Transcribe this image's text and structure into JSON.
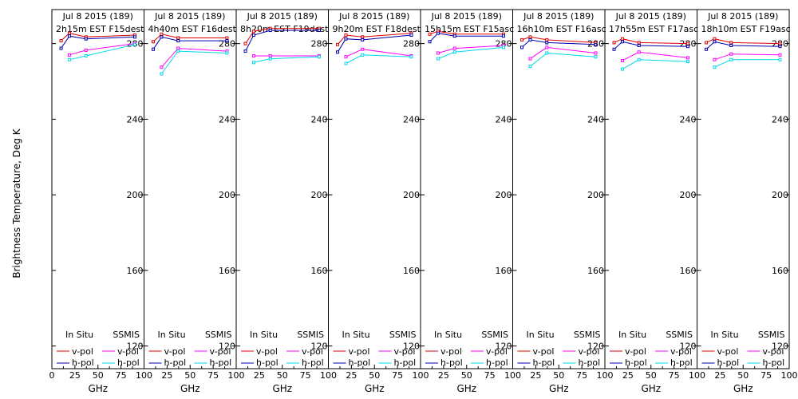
{
  "ylabel": "Brightness Temperature, Deg K",
  "xlabel": "GHz",
  "colors": {
    "insitu_v": "#e00000",
    "insitu_h": "#0000b0",
    "ssmis_v": "#ff00ff",
    "ssmis_h": "#00d8e8",
    "axis": "#000000"
  },
  "legend": {
    "insitu_title": "In Situ",
    "ssmis_title": "SSMIS",
    "v_pol": "v-pol",
    "h_pol": "h-pol"
  },
  "chart_data": [
    {
      "type": "line",
      "title": "Jul 8 2015 (189)",
      "subtitle": "2h15m  EST  F15dest",
      "xticks": [
        "0",
        "25",
        "50",
        "75",
        "100"
      ],
      "yticks": [
        "120",
        "160",
        "200",
        "240",
        "280"
      ],
      "xlim": [
        0,
        100
      ],
      "ylim": [
        108,
        298
      ],
      "series": [
        {
          "name": "In Situ v-pol",
          "x": [
            10,
            19,
            37,
            90
          ],
          "y": [
            281.5,
            285.5,
            283.5,
            284.5
          ]
        },
        {
          "name": "In Situ h-pol",
          "x": [
            10,
            19,
            37,
            90
          ],
          "y": [
            277.5,
            284,
            282.5,
            283.5
          ]
        },
        {
          "name": "SSMIS v-pol",
          "x": [
            19,
            37,
            90
          ],
          "y": [
            274,
            276.5,
            280
          ]
        },
        {
          "name": "SSMIS h-pol",
          "x": [
            19,
            37,
            90
          ],
          "y": [
            271.5,
            273.5,
            279.5
          ]
        }
      ]
    },
    {
      "type": "line",
      "title": "Jul 8 2015 (189)",
      "subtitle": "4h40m  EST  F16dest",
      "xticks": [
        "0",
        "25",
        "50",
        "75",
        "100"
      ],
      "yticks": [
        "120",
        "160",
        "200",
        "240",
        "280"
      ],
      "xlim": [
        0,
        100
      ],
      "ylim": [
        108,
        298
      ],
      "series": [
        {
          "name": "In Situ v-pol",
          "x": [
            10,
            19,
            37,
            90
          ],
          "y": [
            281,
            285,
            283,
            283
          ]
        },
        {
          "name": "In Situ h-pol",
          "x": [
            10,
            19,
            37,
            90
          ],
          "y": [
            277,
            283.5,
            281.5,
            281.5
          ]
        },
        {
          "name": "SSMIS v-pol",
          "x": [
            19,
            37,
            90
          ],
          "y": [
            267.5,
            277.5,
            276
          ]
        },
        {
          "name": "SSMIS h-pol",
          "x": [
            19,
            37,
            90
          ],
          "y": [
            264,
            276,
            275
          ]
        }
      ]
    },
    {
      "type": "line",
      "title": "Jul 8 2015 (189)",
      "subtitle": "8h20m  EST  F19dest",
      "xticks": [
        "0",
        "25",
        "50",
        "75",
        "100"
      ],
      "yticks": [
        "120",
        "160",
        "200",
        "240",
        "280"
      ],
      "xlim": [
        0,
        100
      ],
      "ylim": [
        108,
        298
      ],
      "series": [
        {
          "name": "In Situ v-pol",
          "x": [
            10,
            19,
            37,
            90
          ],
          "y": [
            280,
            286.5,
            288,
            288
          ]
        },
        {
          "name": "In Situ h-pol",
          "x": [
            10,
            19,
            37,
            90
          ],
          "y": [
            276,
            284.5,
            287,
            287
          ]
        },
        {
          "name": "SSMIS v-pol",
          "x": [
            19,
            37,
            90
          ],
          "y": [
            273.5,
            273.5,
            273.5
          ]
        },
        {
          "name": "SSMIS h-pol",
          "x": [
            19,
            37,
            90
          ],
          "y": [
            270,
            272,
            273
          ]
        }
      ]
    },
    {
      "type": "line",
      "title": "Jul 8 2015 (189)",
      "subtitle": "9h20m  EST  F18dest",
      "xticks": [
        "0",
        "25",
        "50",
        "75",
        "100"
      ],
      "yticks": [
        "120",
        "160",
        "200",
        "240",
        "280"
      ],
      "xlim": [
        0,
        100
      ],
      "ylim": [
        108,
        298
      ],
      "series": [
        {
          "name": "In Situ v-pol",
          "x": [
            10,
            19,
            37,
            90
          ],
          "y": [
            279.5,
            284.5,
            283.5,
            285.5
          ]
        },
        {
          "name": "In Situ h-pol",
          "x": [
            10,
            19,
            37,
            90
          ],
          "y": [
            275.5,
            282.5,
            282,
            284.5
          ]
        },
        {
          "name": "SSMIS v-pol",
          "x": [
            19,
            37,
            90
          ],
          "y": [
            273,
            277,
            273.5
          ]
        },
        {
          "name": "SSMIS h-pol",
          "x": [
            19,
            37,
            90
          ],
          "y": [
            269.5,
            274,
            273
          ]
        }
      ]
    },
    {
      "type": "line",
      "title": "Jul 8 2015 (189)",
      "subtitle": "15h15m  EST  F15asc",
      "xticks": [
        "0",
        "25",
        "50",
        "75",
        "100"
      ],
      "yticks": [
        "120",
        "160",
        "200",
        "240",
        "280"
      ],
      "xlim": [
        0,
        100
      ],
      "ylim": [
        108,
        298
      ],
      "series": [
        {
          "name": "In Situ v-pol",
          "x": [
            10,
            19,
            37,
            90
          ],
          "y": [
            285,
            286.5,
            285,
            285
          ]
        },
        {
          "name": "In Situ h-pol",
          "x": [
            10,
            19,
            37,
            90
          ],
          "y": [
            281,
            285.5,
            284,
            284
          ]
        },
        {
          "name": "SSMIS v-pol",
          "x": [
            19,
            37,
            90
          ],
          "y": [
            275,
            277.5,
            279
          ]
        },
        {
          "name": "SSMIS h-pol",
          "x": [
            19,
            37,
            90
          ],
          "y": [
            272,
            275.5,
            278
          ]
        }
      ]
    },
    {
      "type": "line",
      "title": "Jul 8 2015 (189)",
      "subtitle": "16h10m  EST  F16asc",
      "xticks": [
        "0",
        "25",
        "50",
        "75",
        "100"
      ],
      "yticks": [
        "120",
        "160",
        "200",
        "240",
        "280"
      ],
      "xlim": [
        0,
        100
      ],
      "ylim": [
        108,
        298
      ],
      "series": [
        {
          "name": "In Situ v-pol",
          "x": [
            10,
            19,
            37,
            90
          ],
          "y": [
            282,
            283.5,
            282,
            280.5
          ]
        },
        {
          "name": "In Situ h-pol",
          "x": [
            10,
            19,
            37,
            90
          ],
          "y": [
            278,
            282,
            280.5,
            279.5
          ]
        },
        {
          "name": "SSMIS v-pol",
          "x": [
            19,
            37,
            90
          ],
          "y": [
            272,
            278,
            275
          ]
        },
        {
          "name": "SSMIS h-pol",
          "x": [
            19,
            37,
            90
          ],
          "y": [
            268,
            275,
            273
          ]
        }
      ]
    },
    {
      "type": "line",
      "title": "Jul 8 2015 (189)",
      "subtitle": "17h55m  EST  F17asc",
      "xticks": [
        "0",
        "25",
        "50",
        "75",
        "100"
      ],
      "yticks": [
        "120",
        "160",
        "200",
        "240",
        "280"
      ],
      "xlim": [
        0,
        100
      ],
      "ylim": [
        108,
        298
      ],
      "series": [
        {
          "name": "In Situ v-pol",
          "x": [
            10,
            19,
            37,
            90
          ],
          "y": [
            280.5,
            282.5,
            280.5,
            280
          ]
        },
        {
          "name": "In Situ h-pol",
          "x": [
            10,
            19,
            37,
            90
          ],
          "y": [
            277,
            281,
            279,
            278.5
          ]
        },
        {
          "name": "SSMIS v-pol",
          "x": [
            19,
            37,
            90
          ],
          "y": [
            271,
            275.5,
            272.5
          ]
        },
        {
          "name": "SSMIS h-pol",
          "x": [
            19,
            37,
            90
          ],
          "y": [
            266.5,
            271.5,
            270.5
          ]
        }
      ]
    },
    {
      "type": "line",
      "title": "Jul 8 2015 (189)",
      "subtitle": "18h10m  EST  F19asc",
      "xticks": [
        "0",
        "25",
        "50",
        "75",
        "100"
      ],
      "yticks": [
        "120",
        "160",
        "200",
        "240",
        "280"
      ],
      "xlim": [
        0,
        100
      ],
      "ylim": [
        108,
        298
      ],
      "series": [
        {
          "name": "In Situ v-pol",
          "x": [
            10,
            19,
            37,
            90
          ],
          "y": [
            280.5,
            282.5,
            280.5,
            280
          ]
        },
        {
          "name": "In Situ h-pol",
          "x": [
            10,
            19,
            37,
            90
          ],
          "y": [
            277,
            281,
            279,
            278.5
          ]
        },
        {
          "name": "SSMIS v-pol",
          "x": [
            19,
            37,
            90
          ],
          "y": [
            271.5,
            274.5,
            274
          ]
        },
        {
          "name": "SSMIS h-pol",
          "x": [
            19,
            37,
            90
          ],
          "y": [
            267.5,
            271.5,
            271.5
          ]
        }
      ]
    }
  ]
}
